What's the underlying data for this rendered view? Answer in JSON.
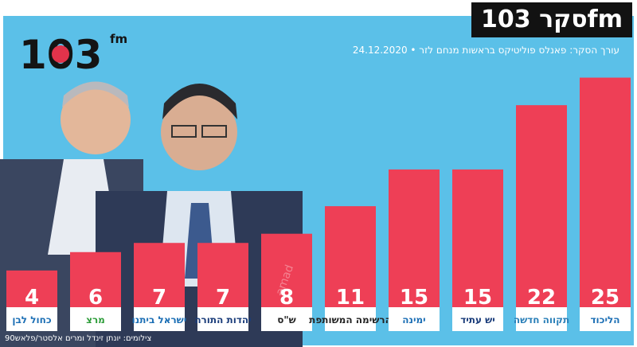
{
  "header": {
    "badge_label": "סקר 103fm",
    "subtitle": "24.12.2020 • עורך הסקר: פאנלס פוליטיקס בראשות מנחם לזר",
    "photo_credit": "צילומים: יונתן זינדל ומרים אלסטר/פלאש90",
    "logo_text": "103",
    "logo_sup": "fm",
    "watermark": "a̶mad"
  },
  "colors": {
    "background": "#5bc0e8",
    "bar": "#ee3f56",
    "badge_bg": "#121212"
  },
  "chart_data": {
    "type": "bar",
    "title": "סקר 103fm",
    "categories": [
      "כחול לבן",
      "מרצ",
      "ישראל ביתנו",
      "יהדות התורה",
      "ש\"ס",
      "הרשימה המשותפת",
      "ימינה",
      "יש עתיד",
      "תקווה חדשה",
      "הליכוד"
    ],
    "values": [
      4,
      6,
      7,
      7,
      8,
      11,
      15,
      15,
      22,
      25
    ],
    "value_labels": [
      "4",
      "6",
      "7",
      "7",
      "8",
      "11",
      "15",
      "15",
      "22",
      "25"
    ],
    "ylim": [
      0,
      26
    ],
    "grid": false,
    "legend": "none",
    "label_colors": [
      "#1c6fb5",
      "#2e9d3a",
      "#1c6fb5",
      "#1a3c7a",
      "#222222",
      "#222222",
      "#1c6fb5",
      "#1a3c7a",
      "#2a7fb8",
      "#1c6fb5"
    ]
  }
}
